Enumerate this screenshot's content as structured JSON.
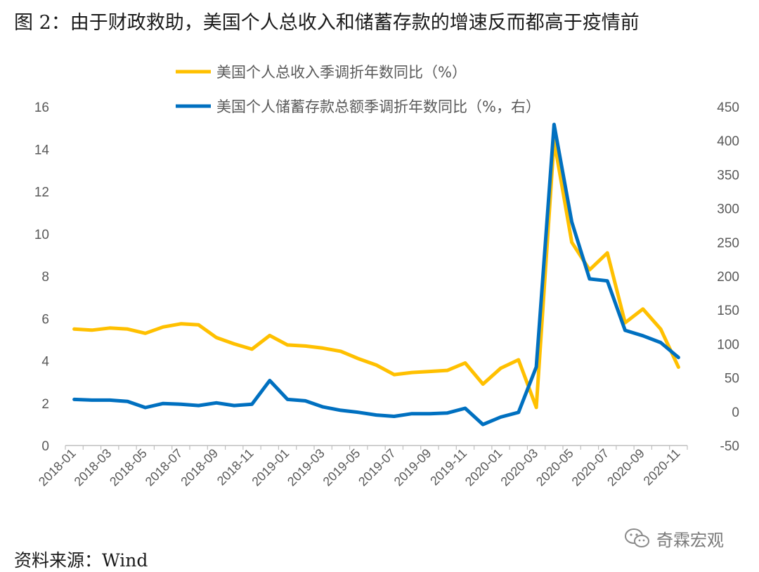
{
  "title": "图 2：由于财政救助，美国个人总收入和储蓄存款的增速反而都高于疫情前",
  "source": "资料来源：Wind",
  "watermark": "奇霖宏观",
  "chart_data": {
    "type": "line",
    "x": [
      "2018-01",
      "2018-02",
      "2018-03",
      "2018-04",
      "2018-05",
      "2018-06",
      "2018-07",
      "2018-08",
      "2018-09",
      "2018-10",
      "2018-11",
      "2018-12",
      "2019-01",
      "2019-02",
      "2019-03",
      "2019-04",
      "2019-05",
      "2019-06",
      "2019-07",
      "2019-08",
      "2019-09",
      "2019-10",
      "2019-11",
      "2019-12",
      "2020-01",
      "2020-02",
      "2020-03",
      "2020-04",
      "2020-05",
      "2020-06",
      "2020-07",
      "2020-08",
      "2020-09",
      "2020-10",
      "2020-11"
    ],
    "x_tick_labels": [
      "2018-01",
      "2018-03",
      "2018-05",
      "2018-07",
      "2018-09",
      "2018-11",
      "2019-01",
      "2019-03",
      "2019-05",
      "2019-07",
      "2019-09",
      "2019-11",
      "2020-01",
      "2020-03",
      "2020-05",
      "2020-07",
      "2020-09",
      "2020-11"
    ],
    "y_left": {
      "ylim": [
        0,
        16
      ],
      "ticks": [
        "0",
        "2",
        "4",
        "6",
        "8",
        "10",
        "12",
        "14",
        "16"
      ]
    },
    "y_right": {
      "ylim": [
        -50,
        450
      ],
      "ticks": [
        "-50",
        "0",
        "50",
        "100",
        "150",
        "200",
        "250",
        "300",
        "350",
        "400",
        "450"
      ]
    },
    "series": [
      {
        "name": "美国个人总收入季调折年数同比（%）",
        "axis": "left",
        "color": "#FFC000",
        "values": [
          5.5,
          5.45,
          5.55,
          5.5,
          5.3,
          5.6,
          5.75,
          5.7,
          5.1,
          4.8,
          4.55,
          5.2,
          4.75,
          4.7,
          4.6,
          4.45,
          4.1,
          3.8,
          3.35,
          3.45,
          3.5,
          3.55,
          3.9,
          2.9,
          3.65,
          4.05,
          1.8,
          14.4,
          9.6,
          8.3,
          9.1,
          5.8,
          6.45,
          5.5,
          3.7
        ]
      },
      {
        "name": "美国个人储蓄存款总额季调折年数同比（%，右）",
        "axis": "right",
        "color": "#0070C0",
        "values": [
          18,
          17,
          17,
          15,
          6,
          12,
          11,
          9,
          13,
          9,
          11,
          46,
          18,
          16,
          7,
          2,
          -1,
          -5,
          -7,
          -3,
          -3,
          -2,
          5,
          -19,
          -8,
          -1,
          66,
          424,
          280,
          196,
          193,
          120,
          112,
          102,
          80
        ]
      }
    ]
  }
}
